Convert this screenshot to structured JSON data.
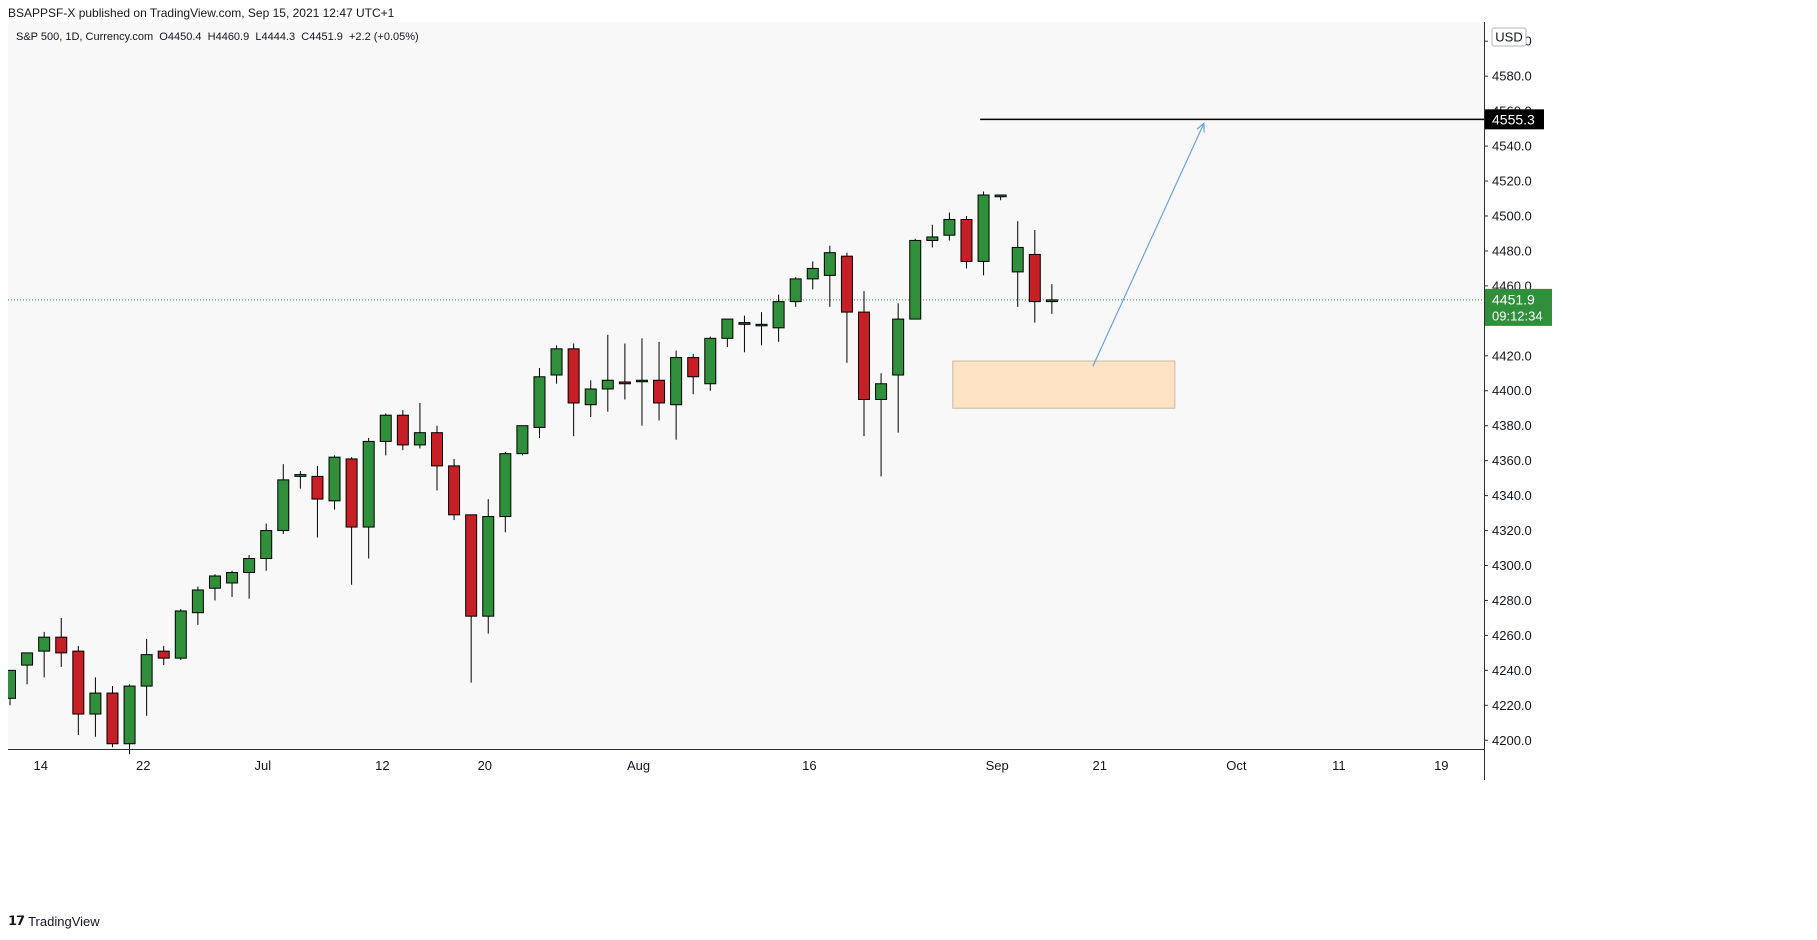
{
  "header": {
    "published_line": "BSAPPSF-X published on TradingView.com, Sep 15, 2021 12:47 UTC+1"
  },
  "footer": {
    "brand": "TradingView",
    "icon": "tradingview-logo-icon"
  },
  "colors": {
    "background": "#f8f8f8",
    "up": "#2f8f3a",
    "down": "#c62026",
    "price_badge": "#2f8f3a",
    "target_line": "#000000",
    "zone_fill": "#fde3c4",
    "zone_border": "#c9b8a2",
    "arrow": "#6aa2dd"
  },
  "chart_data": {
    "type": "candlestick",
    "symbol_info": "S&P 500, 1D, Currency.com",
    "ohlc_text": {
      "o_label": "O",
      "o": "4450.4",
      "h_label": "H",
      "h": "4460.9",
      "l_label": "L",
      "l": "4444.3",
      "c_label": "C",
      "c": "4451.9",
      "change": "+2.2 (+0.05%)"
    },
    "currency": "USD",
    "ylim": [
      4195,
      4611
    ],
    "y_ticks": [
      "4200.0",
      "4220.0",
      "4240.0",
      "4260.0",
      "4280.0",
      "4300.0",
      "4320.0",
      "4340.0",
      "4360.0",
      "4380.0",
      "4400.0",
      "4420.0",
      "4440.0",
      "4460.0",
      "4480.0",
      "4500.0",
      "4520.0",
      "4540.0",
      "4560.0",
      "4580.0",
      "4600.0"
    ],
    "x_ticks": [
      {
        "label": "14",
        "index": 1.8
      },
      {
        "label": "22",
        "index": 7.8
      },
      {
        "label": "Jul",
        "index": 14.8
      },
      {
        "label": "12",
        "index": 21.8
      },
      {
        "label": "20",
        "index": 27.8
      },
      {
        "label": "Aug",
        "index": 36.8
      },
      {
        "label": "16",
        "index": 46.8
      },
      {
        "label": "Sep",
        "index": 57.8
      },
      {
        "label": "21",
        "index": 63.8
      },
      {
        "label": "Oct",
        "index": 71.8
      },
      {
        "label": "11",
        "index": 77.8
      },
      {
        "label": "19",
        "index": 83.8
      }
    ],
    "candles": [
      {
        "o": 4224,
        "h": 4240,
        "l": 4220,
        "c": 4240
      },
      {
        "o": 4243,
        "h": 4250,
        "l": 4232,
        "c": 4250
      },
      {
        "o": 4251,
        "h": 4262,
        "l": 4236,
        "c": 4259
      },
      {
        "o": 4259,
        "h": 4270,
        "l": 4242,
        "c": 4250
      },
      {
        "o": 4251,
        "h": 4254,
        "l": 4203,
        "c": 4215
      },
      {
        "o": 4215,
        "h": 4236,
        "l": 4202,
        "c": 4227
      },
      {
        "o": 4227,
        "h": 4231,
        "l": 4196,
        "c": 4198
      },
      {
        "o": 4198,
        "h": 4232,
        "l": 4192,
        "c": 4231
      },
      {
        "o": 4231,
        "h": 4258,
        "l": 4214,
        "c": 4249
      },
      {
        "o": 4251,
        "h": 4254,
        "l": 4243,
        "c": 4247
      },
      {
        "o": 4247,
        "h": 4275,
        "l": 4246,
        "c": 4274
      },
      {
        "o": 4273,
        "h": 4288,
        "l": 4266,
        "c": 4286
      },
      {
        "o": 4287,
        "h": 4295,
        "l": 4280,
        "c": 4294
      },
      {
        "o": 4290,
        "h": 4297,
        "l": 4282,
        "c": 4296
      },
      {
        "o": 4296,
        "h": 4306,
        "l": 4281,
        "c": 4304
      },
      {
        "o": 4304,
        "h": 4324,
        "l": 4297,
        "c": 4320
      },
      {
        "o": 4320,
        "h": 4358,
        "l": 4318,
        "c": 4349
      },
      {
        "o": 4351,
        "h": 4354,
        "l": 4344,
        "c": 4352
      },
      {
        "o": 4351,
        "h": 4357,
        "l": 4316,
        "c": 4338
      },
      {
        "o": 4337,
        "h": 4363,
        "l": 4332,
        "c": 4362
      },
      {
        "o": 4361,
        "h": 4362,
        "l": 4289,
        "c": 4322
      },
      {
        "o": 4322,
        "h": 4373,
        "l": 4304,
        "c": 4371
      },
      {
        "o": 4371,
        "h": 4387,
        "l": 4363,
        "c": 4386
      },
      {
        "o": 4386,
        "h": 4389,
        "l": 4366,
        "c": 4369
      },
      {
        "o": 4369,
        "h": 4393,
        "l": 4367,
        "c": 4376
      },
      {
        "o": 4376,
        "h": 4380,
        "l": 4343,
        "c": 4357
      },
      {
        "o": 4357,
        "h": 4361,
        "l": 4326,
        "c": 4329
      },
      {
        "o": 4329,
        "h": 4329,
        "l": 4233,
        "c": 4271
      },
      {
        "o": 4271,
        "h": 4338,
        "l": 4261,
        "c": 4328
      },
      {
        "o": 4328,
        "h": 4365,
        "l": 4319,
        "c": 4364
      },
      {
        "o": 4364,
        "h": 4380,
        "l": 4363,
        "c": 4380
      },
      {
        "o": 4379,
        "h": 4413,
        "l": 4373,
        "c": 4408
      },
      {
        "o": 4409,
        "h": 4426,
        "l": 4404,
        "c": 4424
      },
      {
        "o": 4424,
        "h": 4427,
        "l": 4374,
        "c": 4393
      },
      {
        "o": 4392,
        "h": 4406,
        "l": 4385,
        "c": 4401
      },
      {
        "o": 4401,
        "h": 4432,
        "l": 4388,
        "c": 4406
      },
      {
        "o": 4405,
        "h": 4427,
        "l": 4395,
        "c": 4404
      },
      {
        "o": 4406,
        "h": 4430,
        "l": 4380,
        "c": 4406
      },
      {
        "o": 4406,
        "h": 4428,
        "l": 4383,
        "c": 4393
      },
      {
        "o": 4392,
        "h": 4423,
        "l": 4372,
        "c": 4419
      },
      {
        "o": 4419,
        "h": 4421,
        "l": 4398,
        "c": 4408
      },
      {
        "o": 4404,
        "h": 4431,
        "l": 4400,
        "c": 4430
      },
      {
        "o": 4430,
        "h": 4440,
        "l": 4425,
        "c": 4441
      },
      {
        "o": 4439,
        "h": 4443,
        "l": 4422,
        "c": 4438
      },
      {
        "o": 4438,
        "h": 4445,
        "l": 4426,
        "c": 4438
      },
      {
        "o": 4436,
        "h": 4455,
        "l": 4428,
        "c": 4451
      },
      {
        "o": 4451,
        "h": 4465,
        "l": 4448,
        "c": 4464
      },
      {
        "o": 4464,
        "h": 4474,
        "l": 4458,
        "c": 4470
      },
      {
        "o": 4466,
        "h": 4483,
        "l": 4448,
        "c": 4479
      },
      {
        "o": 4477,
        "h": 4479,
        "l": 4416,
        "c": 4445
      },
      {
        "o": 4445,
        "h": 4457,
        "l": 4374,
        "c": 4395
      },
      {
        "o": 4395,
        "h": 4410,
        "l": 4351,
        "c": 4404
      },
      {
        "o": 4409,
        "h": 4450,
        "l": 4376,
        "c": 4441
      },
      {
        "o": 4441,
        "h": 4487,
        "l": 4441,
        "c": 4486
      },
      {
        "o": 4486,
        "h": 4495,
        "l": 4482,
        "c": 4488
      },
      {
        "o": 4489,
        "h": 4502,
        "l": 4486,
        "c": 4498
      },
      {
        "o": 4498,
        "h": 4500,
        "l": 4470,
        "c": 4474
      },
      {
        "o": 4474,
        "h": 4514,
        "l": 4466,
        "c": 4512
      },
      {
        "o": 4511,
        "h": 4512,
        "l": 4509,
        "c": 4512
      },
      {
        "o": 4468,
        "h": 4497,
        "l": 4448,
        "c": 4482
      },
      {
        "o": 4478,
        "h": 4492,
        "l": 4439,
        "c": 4451
      },
      {
        "o": 4451,
        "h": 4461,
        "l": 4444,
        "c": 4452
      }
    ],
    "price_badge": {
      "price": "4451.9",
      "countdown": "09:12:34"
    },
    "target_line": {
      "price": 4555.3,
      "label": "4555.3",
      "start_index": 56.8
    },
    "zone": {
      "top": 4417,
      "bottom": 4390,
      "start_index": 55.2,
      "end_index": 68.2
    },
    "arrow": {
      "from_index": 63.4,
      "from_price": 4414,
      "to_index": 69.9,
      "to_price": 4553
    }
  }
}
